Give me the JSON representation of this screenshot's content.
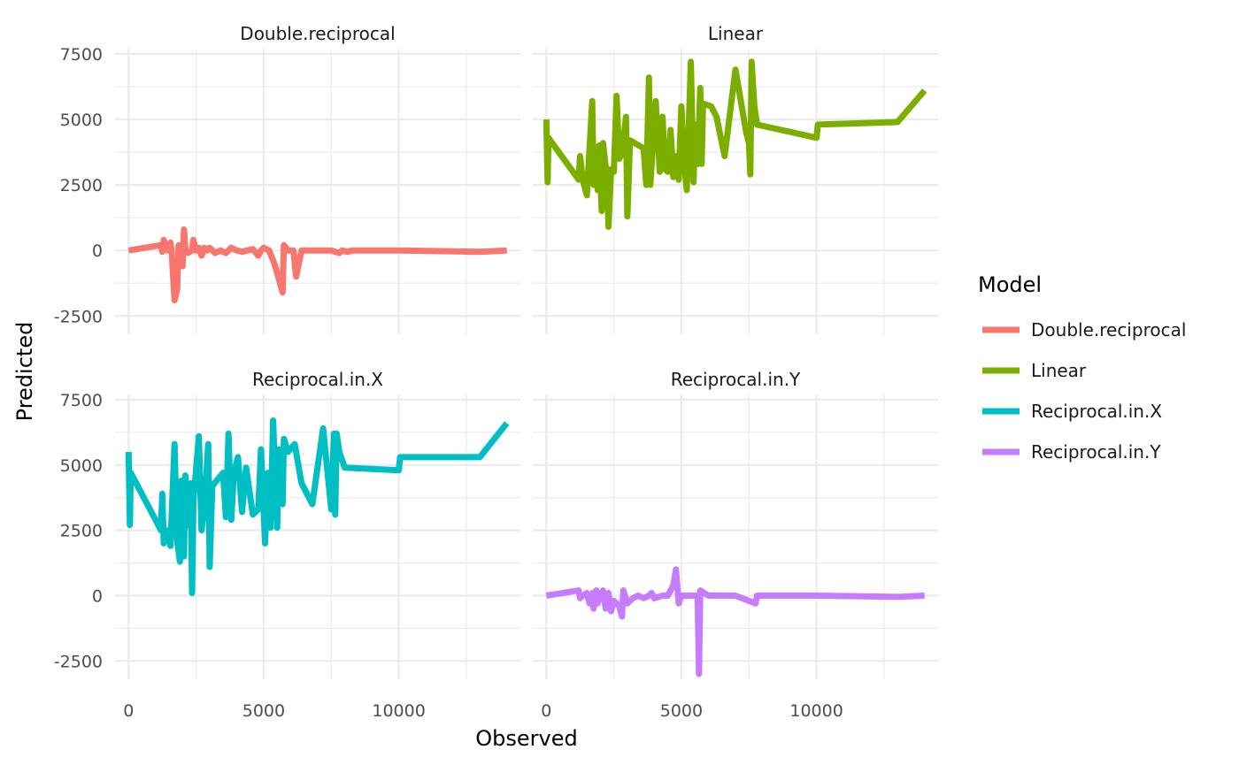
{
  "chart_data": {
    "type": "line",
    "layout": "facet_wrap 2x2",
    "xlabel": "Observed",
    "ylabel": "Predicted",
    "xlim": [
      -500,
      14500
    ],
    "ylim": [
      -3200,
      7700
    ],
    "x_ticks": [
      0,
      5000,
      10000
    ],
    "y_ticks": [
      -2500,
      0,
      2500,
      5000,
      7500
    ],
    "x_tick_labels": [
      "0",
      "5000",
      "10000"
    ],
    "y_tick_labels": [
      "-2500",
      "0",
      "2500",
      "5000",
      "7500"
    ],
    "grid": true,
    "legend": {
      "title": "Model",
      "position": "right",
      "entries": [
        "Double.reciprocal",
        "Linear",
        "Reciprocal.in.X",
        "Reciprocal.in.Y"
      ]
    },
    "panels": [
      {
        "name": "Double.reciprocal",
        "color": "#F8766D",
        "points": [
          [
            0,
            0
          ],
          [
            1200,
            200
          ],
          [
            1250,
            -50
          ],
          [
            1300,
            400
          ],
          [
            1450,
            0
          ],
          [
            1550,
            300
          ],
          [
            1600,
            -100
          ],
          [
            1700,
            -1900
          ],
          [
            1800,
            -1500
          ],
          [
            1850,
            200
          ],
          [
            1900,
            -300
          ],
          [
            2000,
            -600
          ],
          [
            2050,
            800
          ],
          [
            2100,
            100
          ],
          [
            2200,
            -100
          ],
          [
            2350,
            0
          ],
          [
            2400,
            400
          ],
          [
            2500,
            0
          ],
          [
            2600,
            100
          ],
          [
            2700,
            -200
          ],
          [
            2800,
            100
          ],
          [
            2900,
            0
          ],
          [
            3000,
            100
          ],
          [
            3200,
            -100
          ],
          [
            3400,
            0
          ],
          [
            3600,
            -100
          ],
          [
            3700,
            0
          ],
          [
            3800,
            100
          ],
          [
            4000,
            0
          ],
          [
            4200,
            -50
          ],
          [
            4400,
            0
          ],
          [
            4600,
            50
          ],
          [
            4800,
            -200
          ],
          [
            4900,
            0
          ],
          [
            5000,
            100
          ],
          [
            5200,
            0
          ],
          [
            5400,
            -500
          ],
          [
            5700,
            -1600
          ],
          [
            5750,
            200
          ],
          [
            5900,
            0
          ],
          [
            6100,
            0
          ],
          [
            6200,
            -1000
          ],
          [
            6300,
            -500
          ],
          [
            6400,
            0
          ],
          [
            7000,
            0
          ],
          [
            7500,
            0
          ],
          [
            7800,
            -100
          ],
          [
            7900,
            0
          ],
          [
            8100,
            -50
          ],
          [
            8300,
            0
          ],
          [
            10000,
            0
          ],
          [
            13000,
            -50
          ],
          [
            14000,
            0
          ]
        ]
      },
      {
        "name": "Linear",
        "color": "#7CAE00",
        "points": [
          [
            0,
            5000
          ],
          [
            50,
            2600
          ],
          [
            80,
            4300
          ],
          [
            1200,
            2700
          ],
          [
            1250,
            3600
          ],
          [
            1350,
            2700
          ],
          [
            1500,
            2100
          ],
          [
            1700,
            5700
          ],
          [
            1750,
            2500
          ],
          [
            1800,
            3500
          ],
          [
            1900,
            2300
          ],
          [
            1950,
            4000
          ],
          [
            2050,
            1500
          ],
          [
            2100,
            4100
          ],
          [
            2250,
            2700
          ],
          [
            2300,
            900
          ],
          [
            2400,
            3100
          ],
          [
            2500,
            3000
          ],
          [
            2600,
            5900
          ],
          [
            2700,
            3500
          ],
          [
            2800,
            3700
          ],
          [
            2950,
            5100
          ],
          [
            3000,
            1300
          ],
          [
            3100,
            4200
          ],
          [
            3600,
            3900
          ],
          [
            3700,
            2500
          ],
          [
            3800,
            6600
          ],
          [
            3850,
            2500
          ],
          [
            3950,
            4100
          ],
          [
            4050,
            5700
          ],
          [
            4200,
            3000
          ],
          [
            4300,
            5100
          ],
          [
            4400,
            3100
          ],
          [
            4500,
            3000
          ],
          [
            4600,
            4600
          ],
          [
            4700,
            2800
          ],
          [
            4800,
            3600
          ],
          [
            4900,
            2700
          ],
          [
            5000,
            5500
          ],
          [
            5100,
            3300
          ],
          [
            5200,
            2300
          ],
          [
            5350,
            7200
          ],
          [
            5450,
            2600
          ],
          [
            5500,
            4800
          ],
          [
            5600,
            3300
          ],
          [
            5700,
            6200
          ],
          [
            5750,
            3300
          ],
          [
            5800,
            5600
          ],
          [
            6100,
            5500
          ],
          [
            6300,
            5100
          ],
          [
            6600,
            3600
          ],
          [
            7000,
            6900
          ],
          [
            7400,
            4500
          ],
          [
            7500,
            4100
          ],
          [
            7550,
            2900
          ],
          [
            7600,
            7200
          ],
          [
            7700,
            5500
          ],
          [
            7800,
            4800
          ],
          [
            10000,
            4300
          ],
          [
            10050,
            4800
          ],
          [
            13000,
            4900
          ],
          [
            14000,
            6100
          ]
        ]
      },
      {
        "name": "Reciprocal.in.X",
        "color": "#00BFC4",
        "points": [
          [
            0,
            5500
          ],
          [
            50,
            2700
          ],
          [
            80,
            4700
          ],
          [
            1200,
            2500
          ],
          [
            1250,
            3900
          ],
          [
            1300,
            2000
          ],
          [
            1450,
            2500
          ],
          [
            1550,
            1900
          ],
          [
            1700,
            5800
          ],
          [
            1800,
            2100
          ],
          [
            1900,
            1300
          ],
          [
            1950,
            4400
          ],
          [
            2050,
            1500
          ],
          [
            2100,
            4600
          ],
          [
            2200,
            2700
          ],
          [
            2300,
            4300
          ],
          [
            2350,
            100
          ],
          [
            2400,
            3600
          ],
          [
            2600,
            6100
          ],
          [
            2700,
            2500
          ],
          [
            2800,
            3300
          ],
          [
            2950,
            5800
          ],
          [
            3000,
            1100
          ],
          [
            3100,
            4200
          ],
          [
            3500,
            4700
          ],
          [
            3600,
            3000
          ],
          [
            3700,
            6200
          ],
          [
            3800,
            2900
          ],
          [
            3900,
            4700
          ],
          [
            4050,
            5300
          ],
          [
            4200,
            3200
          ],
          [
            4350,
            4900
          ],
          [
            4600,
            3100
          ],
          [
            4800,
            3300
          ],
          [
            4900,
            5600
          ],
          [
            5050,
            2000
          ],
          [
            5150,
            4700
          ],
          [
            5250,
            2600
          ],
          [
            5350,
            6700
          ],
          [
            5500,
            2600
          ],
          [
            5550,
            5600
          ],
          [
            5700,
            3500
          ],
          [
            5750,
            6000
          ],
          [
            5900,
            5500
          ],
          [
            6150,
            5800
          ],
          [
            6400,
            4300
          ],
          [
            6800,
            3500
          ],
          [
            7200,
            6400
          ],
          [
            7500,
            3300
          ],
          [
            7600,
            6200
          ],
          [
            7650,
            3100
          ],
          [
            7700,
            6200
          ],
          [
            7800,
            5500
          ],
          [
            8000,
            4900
          ],
          [
            10000,
            4800
          ],
          [
            10050,
            5300
          ],
          [
            13000,
            5300
          ],
          [
            14000,
            6600
          ]
        ]
      },
      {
        "name": "Reciprocal.in.Y",
        "color": "#C77CFF",
        "points": [
          [
            0,
            0
          ],
          [
            1200,
            200
          ],
          [
            1250,
            -100
          ],
          [
            1350,
            0
          ],
          [
            1500,
            100
          ],
          [
            1600,
            -300
          ],
          [
            1700,
            100
          ],
          [
            1750,
            -500
          ],
          [
            1850,
            200
          ],
          [
            1900,
            -300
          ],
          [
            2000,
            0
          ],
          [
            2100,
            200
          ],
          [
            2200,
            -500
          ],
          [
            2300,
            100
          ],
          [
            2400,
            -600
          ],
          [
            2500,
            -200
          ],
          [
            2700,
            -400
          ],
          [
            2800,
            -800
          ],
          [
            2850,
            200
          ],
          [
            3000,
            -300
          ],
          [
            3200,
            -100
          ],
          [
            3400,
            0
          ],
          [
            3600,
            -100
          ],
          [
            3800,
            0
          ],
          [
            3900,
            100
          ],
          [
            4000,
            -100
          ],
          [
            4300,
            0
          ],
          [
            4500,
            0
          ],
          [
            4700,
            400
          ],
          [
            4800,
            1000
          ],
          [
            4900,
            -300
          ],
          [
            5000,
            0
          ],
          [
            5600,
            0
          ],
          [
            5650,
            -3000
          ],
          [
            5700,
            200
          ],
          [
            6000,
            0
          ],
          [
            6300,
            0
          ],
          [
            7000,
            0
          ],
          [
            7750,
            -300
          ],
          [
            7800,
            0
          ],
          [
            8000,
            0
          ],
          [
            10000,
            0
          ],
          [
            13000,
            -50
          ],
          [
            14000,
            0
          ]
        ]
      }
    ]
  }
}
